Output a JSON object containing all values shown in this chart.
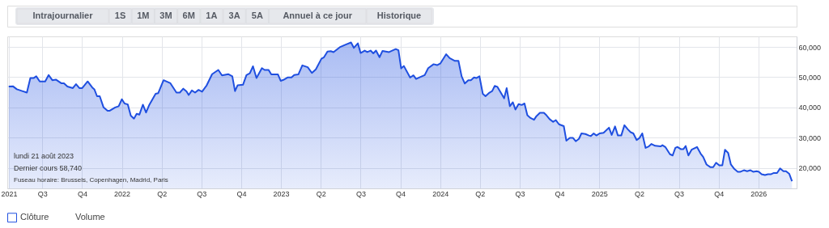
{
  "chart_data": [
    {
      "type": "other",
      "categories": [
        "Intrajournalier",
        "1S",
        "1M",
        "3M",
        "6M",
        "1A",
        "3A",
        "5A",
        "Annuel à ce jour",
        "Historique"
      ]
    },
    {
      "type": "area",
      "grid": true,
      "legend": "bottom",
      "xlim": [
        2021.28,
        2026.24
      ],
      "xticks": [
        {
          "value": 2021.29,
          "label": "2021"
        },
        {
          "value": 2021.5,
          "label": "Q3"
        },
        {
          "value": 2021.75,
          "label": "Q4"
        },
        {
          "value": 2022,
          "label": "2022"
        },
        {
          "value": 2022.25,
          "label": "Q2"
        },
        {
          "value": 2022.5,
          "label": "Q3"
        },
        {
          "value": 2022.75,
          "label": "Q4"
        },
        {
          "value": 2023,
          "label": "2023"
        },
        {
          "value": 2023.25,
          "label": "Q2"
        },
        {
          "value": 2023.5,
          "label": "Q3"
        },
        {
          "value": 2023.75,
          "label": "Q4"
        },
        {
          "value": 2024,
          "label": "2024"
        },
        {
          "value": 2024.25,
          "label": "Q2"
        },
        {
          "value": 2024.5,
          "label": "Q3"
        },
        {
          "value": 2024.75,
          "label": "Q4"
        },
        {
          "value": 2025,
          "label": "2025"
        },
        {
          "value": 2025.25,
          "label": "Q2"
        },
        {
          "value": 2025.5,
          "label": "Q3"
        },
        {
          "value": 2025.75,
          "label": "Q4"
        },
        {
          "value": 2026,
          "label": "2026"
        }
      ],
      "ylim": [
        13200,
        63500
      ],
      "yticks": [
        {
          "value": 20000,
          "label": "20,000"
        },
        {
          "value": 30000,
          "label": "30,000"
        },
        {
          "value": 40000,
          "label": "40,000"
        },
        {
          "value": 50000,
          "label": "50,000"
        },
        {
          "value": 60000,
          "label": "60,000"
        }
      ],
      "annotations": [
        "lundi 21 août 2023",
        "Dernier cours 58,740",
        "Fuseau horaire: Brussels, Copenhagen, Madrid, Paris"
      ],
      "series": [
        {
          "name": "Clôture",
          "color": "#1f4fe0",
          "x": [
            2021.289,
            2021.315,
            2021.34,
            2021.374,
            2021.403,
            2021.425,
            2021.445,
            2021.462,
            2021.484,
            2021.518,
            2021.54,
            2021.563,
            2021.585,
            2021.619,
            2021.636,
            2021.658,
            2021.692,
            2021.712,
            2021.733,
            2021.751,
            2021.785,
            2021.814,
            2021.827,
            2021.844,
            2021.861,
            2021.885,
            2021.91,
            2021.924,
            2021.958,
            2021.98,
            2022.0,
            2022.017,
            2022.037,
            2022.056,
            2022.076,
            2022.093,
            2022.11,
            2022.132,
            2022.152,
            2022.173,
            2022.212,
            2022.228,
            2022.262,
            2022.305,
            2022.343,
            2022.364,
            2022.386,
            2022.406,
            2022.42,
            2022.44,
            2022.46,
            2022.482,
            2022.504,
            2022.533,
            2022.567,
            2022.606,
            2022.629,
            2022.668,
            2022.694,
            2022.711,
            2022.727,
            2022.761,
            2022.783,
            2022.804,
            2022.824,
            2022.846,
            2022.88,
            2022.897,
            2022.922,
            2022.939,
            2022.981,
            2022.998,
            2023.015,
            2023.041,
            2023.066,
            2023.083,
            2023.109,
            2023.134,
            2023.168,
            2023.194,
            2023.219,
            2023.254,
            2023.27,
            2023.292,
            2023.313,
            2023.33,
            2023.369,
            2023.407,
            2023.44,
            2023.458,
            2023.483,
            2023.5,
            2023.526,
            2023.542,
            2023.563,
            2023.58,
            2023.597,
            2023.619,
            2023.638,
            2023.679,
            2023.721,
            2023.738,
            2023.755,
            2023.772,
            2023.811,
            2023.832,
            2023.849,
            2023.874,
            2023.903,
            2023.925,
            2023.959,
            2023.981,
            2024.002,
            2024.038,
            2024.06,
            2024.093,
            2024.115,
            2024.135,
            2024.155,
            2024.177,
            2024.193,
            2024.213,
            2024.227,
            2024.247,
            2024.268,
            2024.285,
            2024.31,
            2024.327,
            2024.343,
            2024.36,
            2024.402,
            2024.418,
            2024.438,
            2024.457,
            2024.473,
            2024.493,
            2024.513,
            2024.53,
            2024.548,
            2024.568,
            2024.59,
            2024.605,
            2024.627,
            2024.652,
            2024.668,
            2024.688,
            2024.71,
            2024.727,
            2024.747,
            2024.777,
            2024.793,
            2024.815,
            2024.835,
            2024.852,
            2024.872,
            2024.888,
            2024.913,
            2024.935,
            2024.947,
            2024.965,
            2024.982,
            2025.002,
            2025.027,
            2025.061,
            2025.078,
            2025.099,
            2025.117,
            2025.138,
            2025.158,
            2025.18,
            2025.197,
            2025.214,
            2025.235,
            2025.253,
            2025.27,
            2025.291,
            2025.311,
            2025.328,
            2025.351,
            2025.385,
            2025.397,
            2025.415,
            2025.444,
            2025.461,
            2025.478,
            2025.492,
            2025.512,
            2025.529,
            2025.543,
            2025.56,
            2025.58,
            2025.614,
            2025.637,
            2025.653,
            2025.674,
            2025.699,
            2025.716,
            2025.734,
            2025.754,
            2025.773,
            2025.79,
            2025.81,
            2025.827,
            2025.849,
            2025.87,
            2025.887,
            2025.909,
            2025.929,
            2025.95,
            2025.967,
            2025.989,
            2026.003,
            2026.02,
            2026.041,
            2026.06,
            2026.08,
            2026.097,
            2026.117,
            2026.136,
            2026.157,
            2026.173,
            2026.194,
            2026.211
          ],
          "values": [
            46900,
            47000,
            46000,
            45400,
            44900,
            49700,
            49700,
            50300,
            48600,
            48600,
            50700,
            49000,
            49200,
            48000,
            48000,
            46900,
            46400,
            47700,
            46400,
            46400,
            48600,
            46600,
            46000,
            43700,
            43700,
            40000,
            38900,
            38900,
            40000,
            40400,
            42700,
            41300,
            41000,
            37300,
            36300,
            37900,
            37600,
            40900,
            38300,
            40900,
            44500,
            44700,
            49000,
            48000,
            44900,
            44900,
            46200,
            45300,
            44100,
            45600,
            44900,
            45800,
            45200,
            47300,
            51000,
            52400,
            50600,
            51000,
            50300,
            45400,
            47300,
            47500,
            50700,
            51300,
            53600,
            49700,
            53000,
            52400,
            52400,
            50900,
            50900,
            48800,
            49100,
            49900,
            49900,
            50700,
            50900,
            53900,
            53300,
            51400,
            52600,
            56100,
            56600,
            58500,
            58600,
            58300,
            59900,
            60800,
            61500,
            59700,
            61200,
            58000,
            58800,
            58300,
            58800,
            57900,
            58800,
            56600,
            58700,
            58300,
            59300,
            58900,
            52900,
            53700,
            49900,
            50600,
            49400,
            50000,
            50700,
            53000,
            54300,
            54000,
            54600,
            57600,
            56300,
            55400,
            55400,
            50300,
            47900,
            49000,
            49000,
            49900,
            49700,
            50300,
            44500,
            43700,
            44900,
            45400,
            47100,
            46800,
            43000,
            46400,
            40400,
            41700,
            39300,
            41100,
            40800,
            41300,
            37400,
            36500,
            35900,
            37100,
            38200,
            38200,
            37400,
            36100,
            35200,
            35800,
            34400,
            33800,
            29000,
            29900,
            29900,
            28800,
            29600,
            31400,
            31200,
            30700,
            30500,
            31400,
            30700,
            31400,
            31600,
            33300,
            30900,
            33700,
            30700,
            30700,
            34100,
            32700,
            31800,
            31400,
            29200,
            29900,
            31400,
            26600,
            27100,
            27900,
            27300,
            27100,
            27500,
            26900,
            24500,
            24100,
            26600,
            26900,
            26200,
            26200,
            27200,
            24100,
            26000,
            26900,
            24700,
            23600,
            21100,
            20200,
            20200,
            21700,
            20800,
            20800,
            26000,
            24900,
            21100,
            19600,
            18700,
            18700,
            19200,
            18900,
            19200,
            18700,
            18900,
            18700,
            17900,
            17600,
            17900,
            17900,
            18300,
            18300,
            19800,
            18900,
            18900,
            18000,
            15600
          ]
        },
        {
          "name": "Volume"
        }
      ]
    }
  ]
}
